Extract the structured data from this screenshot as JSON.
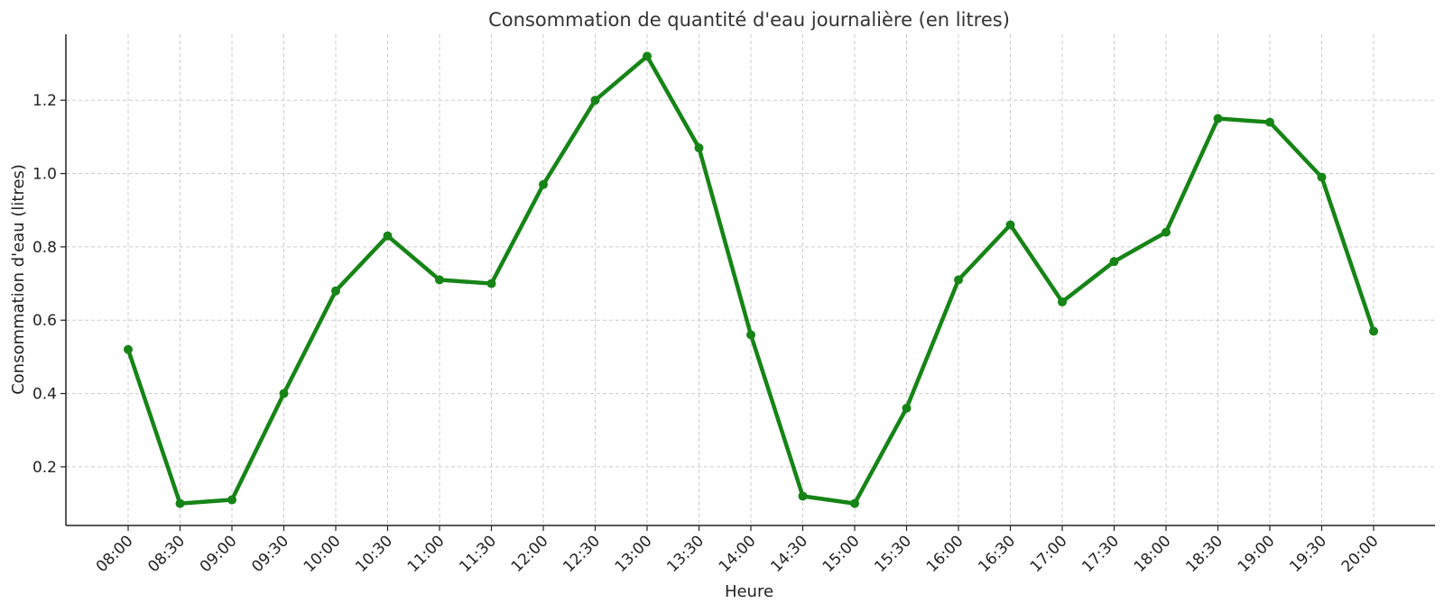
{
  "chart_data": {
    "type": "line",
    "title": "Consommation de quantité d'eau journalière (en litres)",
    "xlabel": "Heure",
    "ylabel": "Consommation d'eau (litres)",
    "categories": [
      "08:00",
      "08:30",
      "09:00",
      "09:30",
      "10:00",
      "10:30",
      "11:00",
      "11:30",
      "12:00",
      "12:30",
      "13:00",
      "13:30",
      "14:00",
      "14:30",
      "15:00",
      "15:30",
      "16:00",
      "16:30",
      "17:00",
      "17:30",
      "18:00",
      "18:30",
      "19:00",
      "19:30",
      "20:00"
    ],
    "series": [
      {
        "values": [
          0.52,
          0.1,
          0.11,
          0.4,
          0.68,
          0.83,
          0.71,
          0.7,
          0.97,
          1.2,
          1.32,
          1.07,
          0.56,
          0.12,
          0.1,
          0.36,
          0.71,
          0.86,
          0.65,
          0.76,
          0.84,
          1.15,
          1.14,
          0.99,
          0.57
        ],
        "color": "#168416"
      }
    ],
    "yticks": [
      0.2,
      0.4,
      0.6,
      0.8,
      1.0,
      1.2
    ],
    "ytick_labels": [
      "0.2",
      "0.4",
      "0.6",
      "0.8",
      "1.0",
      "1.2"
    ],
    "ylim": [
      0.04,
      1.38
    ],
    "grid": true,
    "legend": "none"
  }
}
